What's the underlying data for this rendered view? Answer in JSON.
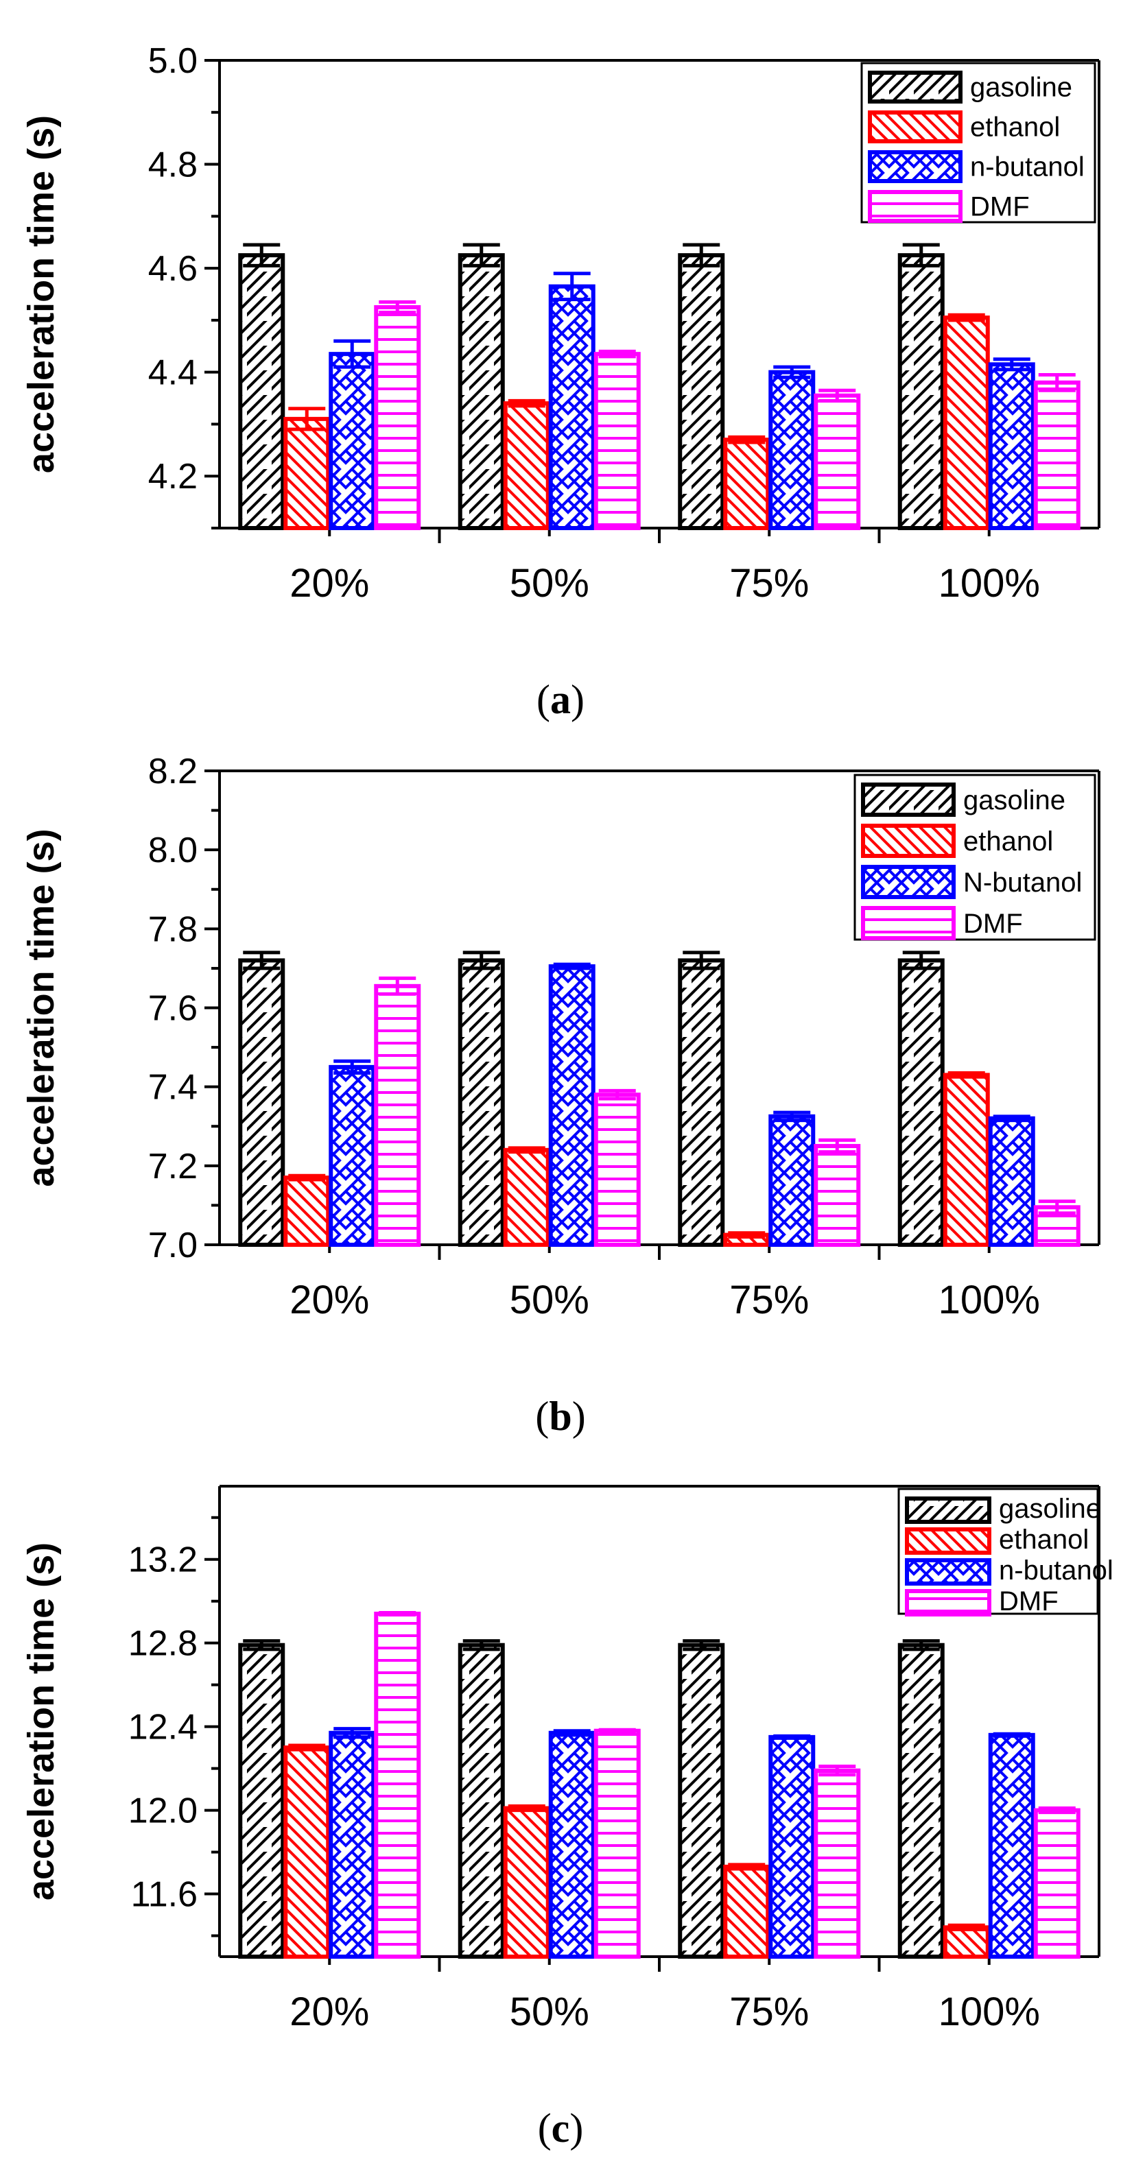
{
  "chart_data": [
    {
      "type": "bar",
      "panel": "a",
      "caption_open": "(",
      "caption_letter": "a",
      "caption_close": ")",
      "ylabel": "acceleration time (s)",
      "categories": [
        "20%",
        "50%",
        "75%",
        "100%"
      ],
      "ylim": [
        4.1,
        5.0
      ],
      "yticks": [
        4.2,
        4.4,
        4.6,
        4.8,
        5.0
      ],
      "ytick_labels": [
        "4.2",
        "4.4",
        "4.6",
        "4.8",
        "5.0"
      ],
      "legend_position": "top-right",
      "series": [
        {
          "name": "gasoline",
          "color": "#000000",
          "pattern": "diag-right",
          "values": [
            4.625,
            4.625,
            4.625,
            4.625
          ],
          "errors": [
            0.02,
            0.02,
            0.02,
            0.02
          ]
        },
        {
          "name": "ethanol",
          "color": "#ff0000",
          "pattern": "diag-left",
          "values": [
            4.31,
            4.34,
            4.27,
            4.505
          ],
          "errors": [
            0.02,
            0.005,
            0.005,
            0.005
          ]
        },
        {
          "name": "n-butanol",
          "color": "#0000ff",
          "pattern": "cross",
          "values": [
            4.435,
            4.565,
            4.4,
            4.415
          ],
          "errors": [
            0.025,
            0.025,
            0.01,
            0.01
          ]
        },
        {
          "name": "DMF",
          "color": "#ff00ff",
          "pattern": "horizontal",
          "values": [
            4.525,
            4.435,
            4.355,
            4.38
          ],
          "errors": [
            0.01,
            0.005,
            0.01,
            0.015
          ]
        }
      ]
    },
    {
      "type": "bar",
      "panel": "b",
      "caption_open": "(",
      "caption_letter": "b",
      "caption_close": ")",
      "ylabel": "acceleration time (s)",
      "categories": [
        "20%",
        "50%",
        "75%",
        "100%"
      ],
      "ylim": [
        7.0,
        8.2
      ],
      "yticks": [
        7.0,
        7.2,
        7.4,
        7.6,
        7.8,
        8.0,
        8.2
      ],
      "ytick_labels": [
        "7.0",
        "7.2",
        "7.4",
        "7.6",
        "7.8",
        "8.0",
        "8.2"
      ],
      "legend_position": "top-right",
      "series": [
        {
          "name": "gasoline",
          "color": "#000000",
          "pattern": "diag-right",
          "values": [
            7.72,
            7.72,
            7.72,
            7.72
          ],
          "errors": [
            0.02,
            0.02,
            0.02,
            0.02
          ]
        },
        {
          "name": "ethanol",
          "color": "#ff0000",
          "pattern": "diag-left",
          "values": [
            7.17,
            7.24,
            7.025,
            7.43
          ],
          "errors": [
            0.005,
            0.005,
            0.005,
            0.005
          ]
        },
        {
          "name": "N-butanol",
          "color": "#0000ff",
          "pattern": "cross",
          "values": [
            7.45,
            7.705,
            7.325,
            7.32
          ],
          "errors": [
            0.015,
            0.005,
            0.01,
            0.005
          ]
        },
        {
          "name": "DMF",
          "color": "#ff00ff",
          "pattern": "horizontal",
          "values": [
            7.655,
            7.38,
            7.25,
            7.095
          ],
          "errors": [
            0.02,
            0.01,
            0.015,
            0.015
          ]
        }
      ]
    },
    {
      "type": "bar",
      "panel": "c",
      "caption_open": "(",
      "caption_letter": "c",
      "caption_close": ")",
      "ylabel": "acceleration time (s)",
      "categories": [
        "20%",
        "50%",
        "75%",
        "100%"
      ],
      "ylim": [
        11.3,
        13.55
      ],
      "yticks": [
        11.6,
        12.0,
        12.4,
        12.8,
        13.2
      ],
      "ytick_labels": [
        "11.6",
        "12.0",
        "12.4",
        "12.8",
        "13.2"
      ],
      "legend_position": "top-right",
      "series": [
        {
          "name": "gasoline",
          "color": "#000000",
          "pattern": "diag-right",
          "values": [
            12.79,
            12.79,
            12.79,
            12.79
          ],
          "errors": [
            0.02,
            0.02,
            0.02,
            0.02
          ]
        },
        {
          "name": "ethanol",
          "color": "#ff0000",
          "pattern": "diag-left",
          "values": [
            12.3,
            12.01,
            11.73,
            11.44
          ],
          "errors": [
            0.01,
            0.01,
            0.01,
            0.01
          ]
        },
        {
          "name": "n-butanol",
          "color": "#0000ff",
          "pattern": "cross",
          "values": [
            12.37,
            12.37,
            12.35,
            12.36
          ],
          "errors": [
            0.02,
            0.01,
            0.005,
            0.005
          ]
        },
        {
          "name": "DMF",
          "color": "#ff00ff",
          "pattern": "horizontal",
          "values": [
            12.94,
            12.38,
            12.19,
            12.0
          ],
          "errors": [
            0.005,
            0.005,
            0.02,
            0.01
          ]
        }
      ]
    }
  ]
}
